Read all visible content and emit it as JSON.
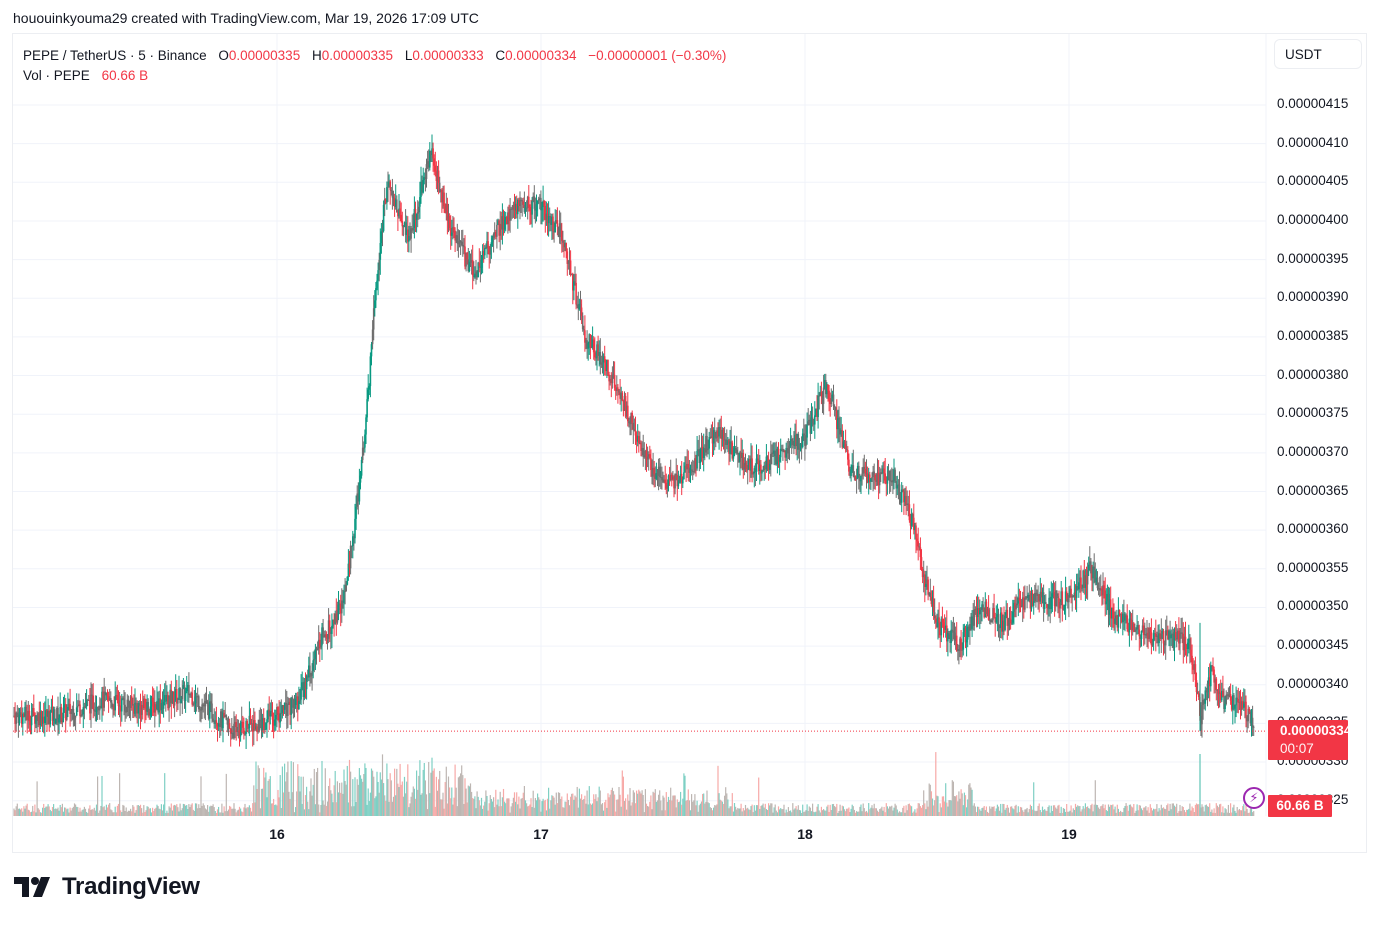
{
  "credit": "hououinkyouma29 created with TradingView.com, Mar 19, 2026 17:09 UTC",
  "legend": {
    "symbol": "PEPE / TetherUS · 5 · Binance",
    "o_label": "O",
    "o": "0.00000335",
    "h_label": "H",
    "h": "0.00000335",
    "l_label": "L",
    "l": "0.00000333",
    "c_label": "C",
    "c": "0.00000334",
    "change": "−0.00000001 (−0.30%)",
    "vol_label": "Vol · PEPE",
    "vol": "60.66 B"
  },
  "currency_button": "USDT",
  "price_axis": {
    "ticks": [
      "0.00000415",
      "0.00000410",
      "0.00000405",
      "0.00000400",
      "0.00000395",
      "0.00000390",
      "0.00000385",
      "0.00000380",
      "0.00000375",
      "0.00000370",
      "0.00000365",
      "0.00000360",
      "0.00000355",
      "0.00000350",
      "0.00000345",
      "0.00000340",
      "0.00000335",
      "0.00000330",
      "0.00000325"
    ],
    "last_price": "0.00000334",
    "countdown": "00:07",
    "volume_badge": "60.66 B"
  },
  "time_axis": {
    "ticks": [
      "16",
      "17",
      "18",
      "19"
    ]
  },
  "colors": {
    "up": "#089981",
    "down": "#f23645",
    "neutral": "#6d6d6d",
    "grid": "#f0f3fa",
    "vol_up": "#7fd0c4",
    "vol_down": "#f7a9a7",
    "vol_neutral": "#bdb6b2"
  },
  "branding": {
    "logo_text": "TradingView",
    "logo_icon": "tradingview-logo-icon"
  },
  "chart_data": {
    "type": "candlestick",
    "title": "PEPE / TetherUS · 5 · Binance",
    "xlabel": "",
    "ylabel": "USDT",
    "ylim": [
      3.23e-06,
      4.19e-06
    ],
    "grid": true,
    "x_ticks": [
      "16",
      "17",
      "18",
      "19"
    ],
    "timeframe": "5m",
    "approx_hourly_close_path": {
      "x": [
        "15 04:00",
        "15 08:00",
        "15 12:00",
        "15 16:00",
        "15 20:00",
        "16 00:00",
        "16 02:00",
        "16 04:00",
        "16 06:00",
        "16 07:00",
        "16 08:00",
        "16 09:00",
        "16 10:00",
        "16 12:00",
        "16 14:00",
        "16 16:00",
        "16 18:00",
        "16 20:00",
        "16 22:00",
        "17 00:00",
        "17 02:00",
        "17 04:00",
        "17 06:00",
        "17 08:00",
        "17 10:00",
        "17 12:00",
        "17 14:00",
        "17 16:00",
        "17 18:00",
        "17 20:00",
        "17 22:00",
        "18 00:00",
        "18 02:00",
        "18 04:00",
        "18 06:00",
        "18 08:00",
        "18 10:00",
        "18 11:00",
        "18 12:00",
        "18 14:00",
        "18 16:00",
        "18 18:00",
        "18 20:00",
        "18 22:00",
        "19 00:00",
        "19 02:00",
        "19 04:00",
        "19 06:00",
        "19 08:00",
        "19 10:00",
        "19 11:00",
        "19 12:00",
        "19 13:00",
        "19 14:00",
        "19 16:00",
        "19 17:05"
      ],
      "values": [
        3.36e-06,
        3.38e-06,
        3.37e-06,
        3.39e-06,
        3.34e-06,
        3.36e-06,
        3.38e-06,
        3.46e-06,
        3.5e-06,
        3.6e-06,
        3.72e-06,
        3.92e-06,
        4.05e-06,
        3.98e-06,
        4.09e-06,
        3.98e-06,
        3.93e-06,
        3.99e-06,
        4.02e-06,
        4.02e-06,
        3.98e-06,
        3.85e-06,
        3.81e-06,
        3.75e-06,
        3.68e-06,
        3.66e-06,
        3.69e-06,
        3.73e-06,
        3.69e-06,
        3.68e-06,
        3.7e-06,
        3.72e-06,
        3.79e-06,
        3.68e-06,
        3.67e-06,
        3.67e-06,
        3.6e-06,
        3.53e-06,
        3.48e-06,
        3.45e-06,
        3.5e-06,
        3.48e-06,
        3.51e-06,
        3.51e-06,
        3.51e-06,
        3.55e-06,
        3.49e-06,
        3.47e-06,
        3.46e-06,
        3.46e-06,
        3.45e-06,
        3.36e-06,
        3.42e-06,
        3.38e-06,
        3.37e-06,
        3.34e-06
      ]
    },
    "key_levels": {
      "high": 4.14e-06,
      "low_pre_rally": 3.31e-06,
      "last": 3.34e-06
    },
    "volume": {
      "last": "60.66 B",
      "peak_region": "16 ~08:00-12:00"
    }
  }
}
